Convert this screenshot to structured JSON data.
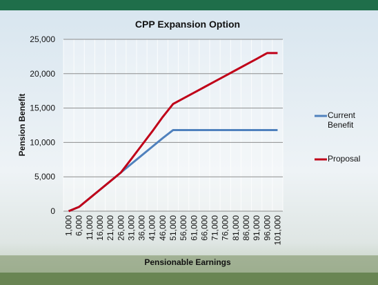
{
  "chart_data": {
    "type": "line",
    "title": "CPP Expansion Option",
    "x_label": "Pensionable Earnings",
    "y_label": "Pension Benefit",
    "categories": [
      "1,000",
      "6,000",
      "11,000",
      "16,000",
      "21,000",
      "26,000",
      "31,000",
      "36,000",
      "41,000",
      "46,000",
      "51,000",
      "56,000",
      "61,000",
      "66,000",
      "71,000",
      "76,000",
      "81,000",
      "86,000",
      "91,000",
      "96,000",
      "101,000"
    ],
    "series": [
      {
        "name": "Current Benefit",
        "color": "#4f81bd",
        "values": [
          0,
          625,
          1875,
          3125,
          4375,
          5625,
          6875,
          8125,
          9375,
          10625,
          11800,
          11800,
          11800,
          11800,
          11800,
          11800,
          11800,
          11800,
          11800,
          11800,
          11800
        ]
      },
      {
        "name": "Proposal",
        "color": "#c00018",
        "values": [
          0,
          625,
          1875,
          3125,
          4375,
          5625,
          7600,
          9600,
          11600,
          13700,
          15600,
          16420,
          17240,
          18060,
          18880,
          19700,
          20520,
          21340,
          22160,
          23000,
          23000
        ]
      }
    ],
    "ylim": [
      0,
      25000
    ],
    "yticks": [
      0,
      {
        "value": 5000,
        "label": "5,000"
      },
      {
        "value": 10000,
        "label": "10,000"
      },
      {
        "value": 15000,
        "label": "15,000"
      },
      {
        "value": 20000,
        "label": "20,000"
      },
      {
        "value": 25000,
        "label": "25,000"
      }
    ],
    "grid": true,
    "legend": "right"
  }
}
